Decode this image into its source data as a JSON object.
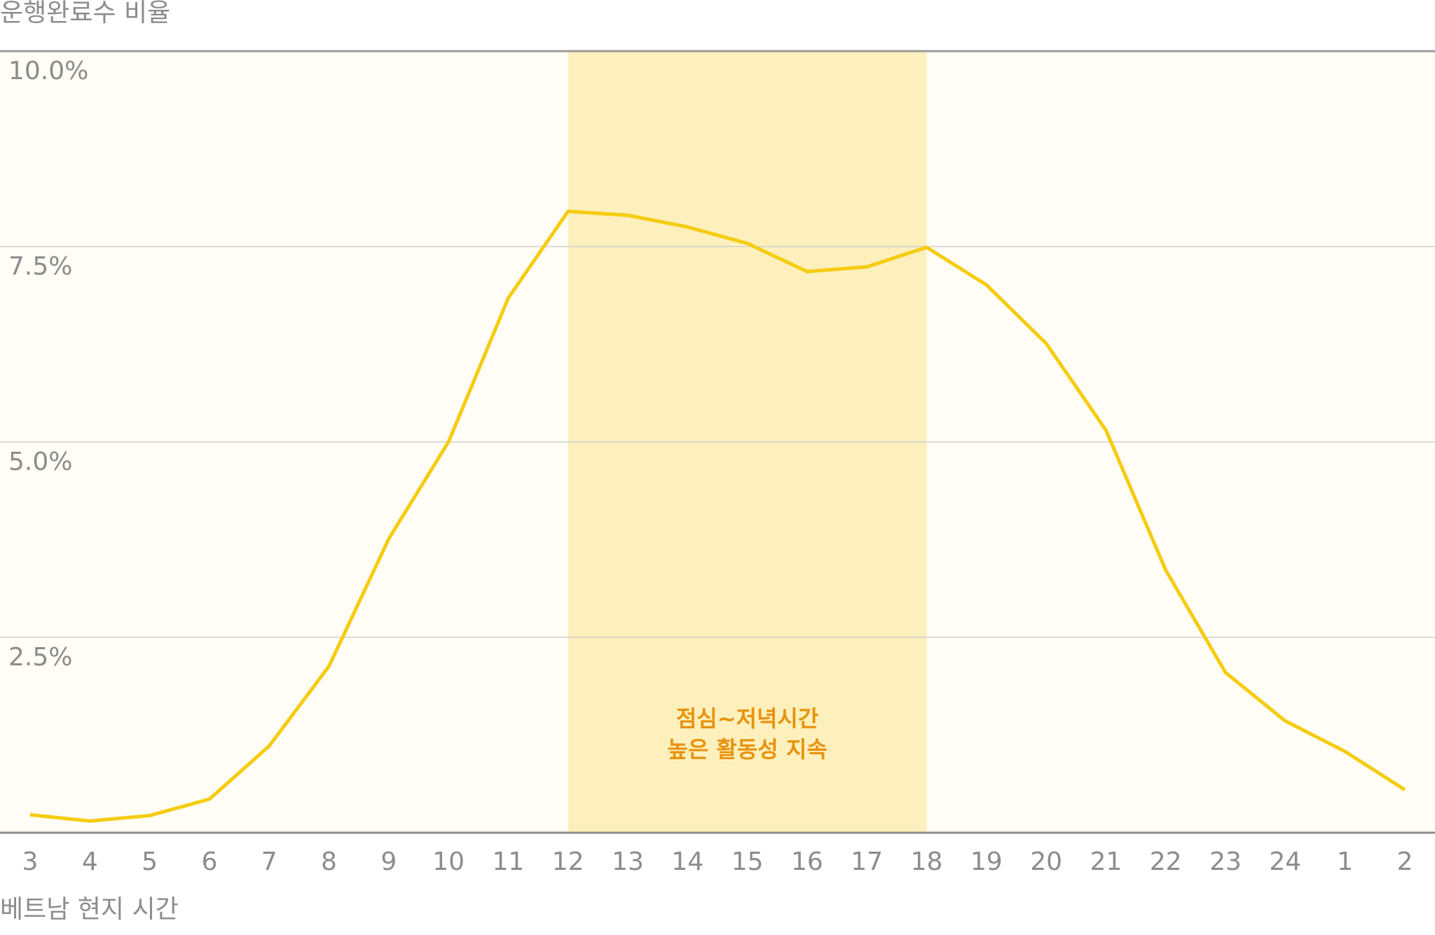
{
  "chart_data": {
    "type": "line",
    "y_axis_title": "운행완료수 비율",
    "x_axis_title": "베트남 현지 시간",
    "categories": [
      "3",
      "4",
      "5",
      "6",
      "7",
      "8",
      "9",
      "10",
      "11",
      "12",
      "13",
      "14",
      "15",
      "16",
      "17",
      "18",
      "19",
      "20",
      "21",
      "22",
      "23",
      "24",
      "1",
      "2"
    ],
    "values": [
      0.23,
      0.15,
      0.22,
      0.43,
      1.11,
      2.13,
      3.76,
      5.0,
      6.84,
      7.95,
      7.9,
      7.75,
      7.54,
      7.18,
      7.24,
      7.49,
      7.01,
      6.26,
      5.15,
      3.36,
      2.05,
      1.43,
      1.04,
      0.55
    ],
    "color": "#f5cc0f",
    "ylim": [
      0,
      10
    ],
    "yticks": [
      {
        "value": 2.5,
        "label": "2.5%"
      },
      {
        "value": 5,
        "label": "5.0%"
      },
      {
        "value": 7.5,
        "label": "7.5%"
      },
      {
        "value": 10,
        "label": "10.0%"
      }
    ],
    "grid": true,
    "annotation": {
      "lines": [
        "점심~저녁시간",
        "높은 활동성 지속"
      ],
      "from": "12",
      "to": "18",
      "color": "#e8920c",
      "band_color": "#fdf0bc"
    }
  }
}
